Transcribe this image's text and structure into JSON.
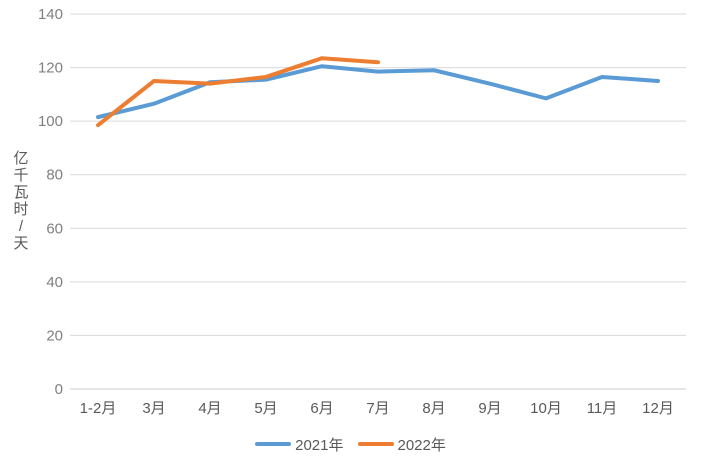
{
  "chart_data": {
    "type": "line",
    "title": "",
    "categories": [
      "1-2月",
      "3月",
      "4月",
      "5月",
      "6月",
      "7月",
      "8月",
      "9月",
      "10月",
      "11月",
      "12月"
    ],
    "series": [
      {
        "name": "2021年",
        "color": "#5B9BD5",
        "values": [
          101.5,
          106.5,
          114.5,
          115.5,
          120.5,
          118.5,
          119,
          114,
          108.5,
          116.5,
          115
        ]
      },
      {
        "name": "2022年",
        "color": "#ED7D31",
        "values": [
          98.5,
          115,
          114,
          116.5,
          123.5,
          122
        ]
      }
    ],
    "xlabel": "",
    "ylabel": "亿千瓦时/天",
    "ylim": [
      0,
      140
    ],
    "ytick_step": 20,
    "yticks": [
      0,
      20,
      40,
      60,
      80,
      100,
      120,
      140
    ],
    "grid": true,
    "legend_position": "bottom"
  },
  "style": {
    "background": "#FFFFFF",
    "gridline_color": "#D9D9D9",
    "axis_line_color": "#CBCBCB",
    "y_tick_label_color": "#7F7F7F",
    "x_tick_label_color": "#595959",
    "legend_text_color": "#595959"
  }
}
